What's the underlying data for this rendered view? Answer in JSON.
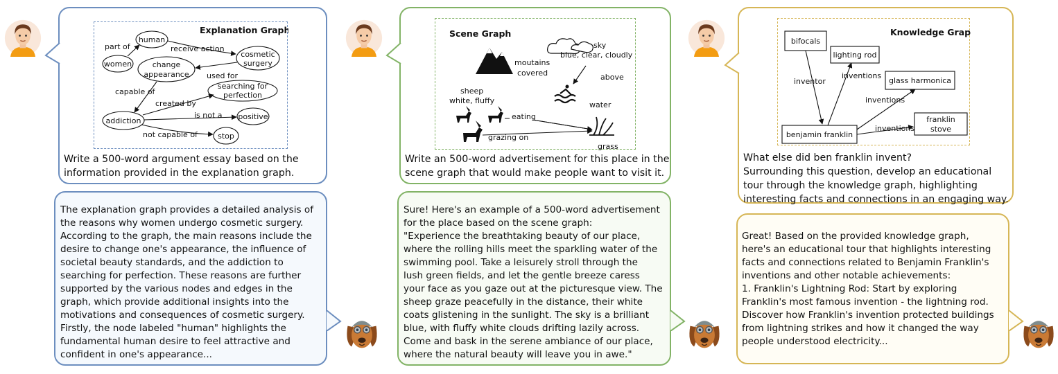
{
  "colors": {
    "blue": "#6c8ebf",
    "green": "#82b366",
    "orange": "#d6b656",
    "blue_bg": "#f5f9fd",
    "green_bg": "#f7fbf4",
    "orange_bg": "#fffdf5"
  },
  "icons": {
    "user": "user-avatar-icon",
    "bot": "dog-robot-avatar-icon"
  },
  "panel1": {
    "graph_title": "Explanation Graph",
    "nodes": {
      "human": "human",
      "women": "women",
      "cosmetic1": "cosmetic",
      "cosmetic2": "surgery",
      "change1": "change",
      "change2": "appearance",
      "addiction": "addiction",
      "search1": "searching for",
      "search2": "perfection",
      "positive": "positive",
      "stop": "stop"
    },
    "edges": {
      "part_of": "part of",
      "receive_action": "receive action",
      "used_for": "used for",
      "capable_of": "capable of",
      "created_by": "created by",
      "is_not_a": "is not a",
      "not_capable_of": "not capable of"
    },
    "question": "Write a 500-word argument essay based on the\ninformation provided in the explanation graph.",
    "answer": "The explanation graph provides a detailed analysis of\nthe reasons why women undergo cosmetic surgery.\nAccording to the graph, the main reasons include the\ndesire to change one's appearance, the influence of\nsocietal beauty standards, and the addiction to\nsearching for perfection. These reasons are further\nsupported by the various nodes and edges in the\ngraph, which provide additional insights into the\nmotivations and consequences of cosmetic surgery.\nFirstly, the node labeled \"human\" highlights the\nfundamental human desire to feel attractive and\nconfident in one's appearance..."
  },
  "panel2": {
    "graph_title": "Scene Graph",
    "labels": {
      "mountains1": "moutains",
      "mountains2": "covered",
      "sky1": "sky",
      "sky2": "blue, clear, cloudly",
      "above": "above",
      "water": "water",
      "sheep1": "sheep",
      "sheep2": "white, fluffy",
      "eating": "eating",
      "grazing_on": "grazing on",
      "grass": "grass"
    },
    "question": "Write an 500-word advertisement for this place in the\nscene graph that would make people want to visit it.",
    "answer": "Sure! Here's an example of a 500-word advertisement\nfor the place based on the scene graph:\n\"Experience the breathtaking beauty of our place,\nwhere the rolling hills meet the sparkling water of the\nswimming pool. Take a leisurely stroll through the\nlush green fields, and let the gentle breeze caress\nyour face as you gaze out at the picturesque view. The\nsheep graze peacefully in the distance, their white\ncoats glistening in the sunlight. The sky is a brilliant\nblue, with fluffy white clouds drifting lazily across.\nCome and bask in the serene ambiance of our place,\nwhere the natural beauty will leave you in awe.\""
  },
  "panel3": {
    "graph_title": "Knowledge Graph",
    "nodes": {
      "bifocals": "bifocals",
      "lighting_rod": "lighting rod",
      "glass_harmonica": "glass harmonica",
      "benjamin_franklin": "benjamin franklin",
      "stove1": "franklin",
      "stove2": "stove"
    },
    "edges": {
      "inventor": "inventor",
      "inventions1": "inventions",
      "inventions2": "inventions",
      "inventions3": "inventions"
    },
    "question": "What else did ben franklin invent?\nSurrounding this question, develop an educational\ntour through the knowledge graph, highlighting\ninteresting facts and connections in an engaging way.",
    "answer": "Great! Based on the provided knowledge graph,\nhere's an educational tour that highlights interesting\nfacts and connections related to Benjamin Franklin's\ninventions and other notable achievements:\n1. Franklin's Lightning Rod: Start by exploring\nFranklin's most famous invention - the lightning rod.\nDiscover how Franklin's invention protected buildings\nfrom lightning strikes and how it changed the way\npeople understood electricity..."
  }
}
